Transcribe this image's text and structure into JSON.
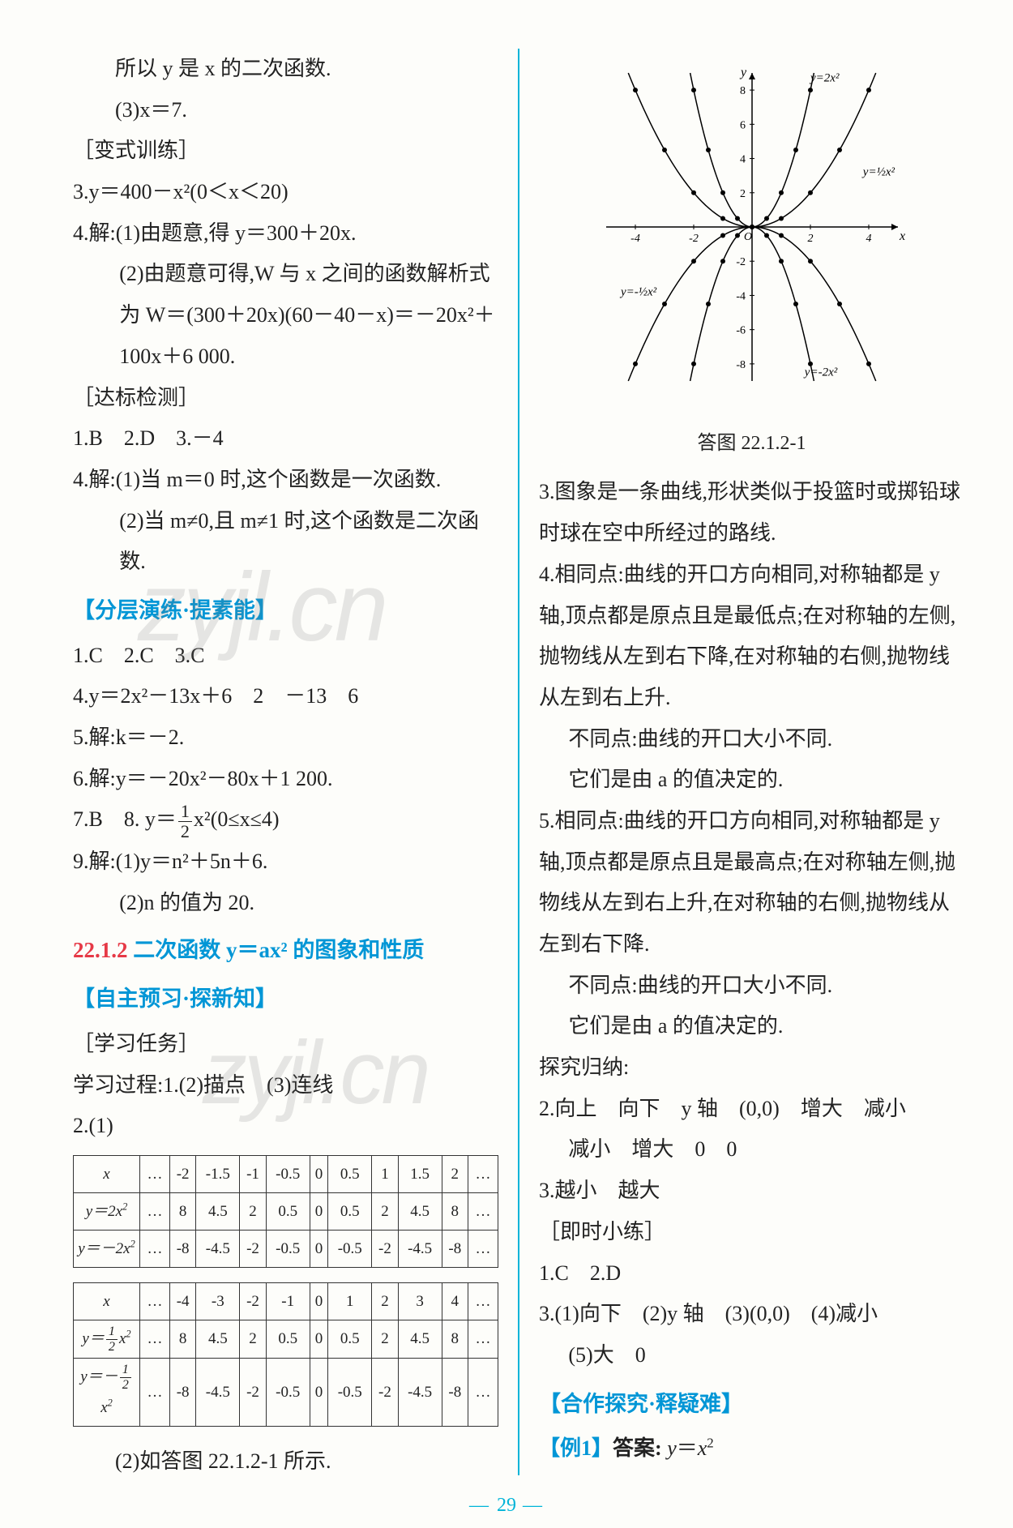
{
  "page_number": "29",
  "watermarks": [
    "zyjl.cn",
    "zyjl.cn"
  ],
  "colors": {
    "divider": "#00b4d8",
    "blue_heading": "#0096d6",
    "red_heading": "#e63946",
    "text": "#222222",
    "background": "#fdfdfa",
    "watermark": "rgba(120,120,120,0.18)"
  },
  "left": {
    "p1": "所以 y 是 x 的二次函数.",
    "p2": "(3)x＝7.",
    "h_var": "［变式训练］",
    "q3": "3.y＝400－x²(0＜x＜20)",
    "q4a": "4.解:(1)由题意,得 y＝300＋20x.",
    "q4b": "(2)由题意可得,W 与 x 之间的函数解析式为 W＝(300＋20x)(60－40－x)＝－20x²＋100x＋6 000.",
    "h_dabiao": "［达标检测］",
    "ans1": "1.B　2.D　3.－4",
    "q4_2a": "4.解:(1)当 m＝0 时,这个函数是一次函数.",
    "q4_2b": "(2)当 m≠0,且 m≠1 时,这个函数是二次函数.",
    "h_fenceng": "【分层演练·提素能】",
    "fc1": "1.C　2.C　3.C",
    "fc4": "4.y＝2x²－13x＋6　2　－13　6",
    "fc5": "5.解:k＝－2.",
    "fc6": "6.解:y＝－20x²－80x＋1 200.",
    "fc7a": "7.B　8.",
    "fc7b": "y＝",
    "fc7c": "x²(0≤x≤4)",
    "fc9a": "9.解:(1)y＝n²＋5n＋6.",
    "fc9b": "(2)n 的值为 20.",
    "sec_num": "22.1.2",
    "sec_txt": "二次函数 y＝ax² 的图象和性质",
    "h_zizhu": "【自主预习·探新知】",
    "h_xuexi": "［学习任务］",
    "xuexi1": "学习过程:1.(2)描点　(3)连线",
    "q2_1": "2.(1)",
    "q2_2_caption": "(2)如答图 22.1.2-1 所示."
  },
  "table1": {
    "headers": [
      "x",
      "…",
      "-2",
      "-1.5",
      "-1",
      "-0.5",
      "0",
      "0.5",
      "1",
      "1.5",
      "2",
      "…"
    ],
    "rows": [
      [
        "y＝2x²",
        "…",
        "8",
        "4.5",
        "2",
        "0.5",
        "0",
        "0.5",
        "2",
        "4.5",
        "8",
        "…"
      ],
      [
        "y＝－2x²",
        "…",
        "-8",
        "-4.5",
        "-2",
        "-0.5",
        "0",
        "-0.5",
        "-2",
        "-4.5",
        "-8",
        "…"
      ]
    ]
  },
  "table2": {
    "headers": [
      "x",
      "…",
      "-4",
      "-3",
      "-2",
      "-1",
      "0",
      "1",
      "2",
      "3",
      "4",
      "…"
    ],
    "rows": [
      [
        "y＝½x²",
        "…",
        "8",
        "4.5",
        "2",
        "0.5",
        "0",
        "0.5",
        "2",
        "4.5",
        "8",
        "…"
      ],
      [
        "y＝－½x²",
        "…",
        "-8",
        "-4.5",
        "-2",
        "-0.5",
        "0",
        "-0.5",
        "-2",
        "-4.5",
        "-8",
        "…"
      ]
    ]
  },
  "chart": {
    "caption": "答图 22.1.2-1",
    "x_range": [
      -5,
      5
    ],
    "y_range": [
      -9,
      9
    ],
    "x_ticks": [
      -4,
      -2,
      2,
      4
    ],
    "y_ticks": [
      -8,
      -6,
      -4,
      -2,
      2,
      4,
      6,
      8
    ],
    "curves": [
      {
        "label": "y=2x²",
        "a": 2.0,
        "label_pos": [
          2.0,
          8.5
        ]
      },
      {
        "label": "y=½x²",
        "a": 0.5,
        "label_pos": [
          3.8,
          3.0
        ]
      },
      {
        "label": "y=-½x²",
        "a": -0.5,
        "label_pos": [
          -4.5,
          -4.0
        ]
      },
      {
        "label": "y=-2x²",
        "a": -2.0,
        "label_pos": [
          1.8,
          -8.7
        ]
      }
    ],
    "axis_color": "#000000",
    "curve_color": "#000000",
    "point_color": "#000000",
    "background": "#fdfdfa"
  },
  "right": {
    "q3": "3.图象是一条曲线,形状类似于投篮时或掷铅球时球在空中所经过的路线.",
    "q4a": "4.相同点:曲线的开口方向相同,对称轴都是 y 轴,顶点都是原点且是最低点;在对称轴的左侧,抛物线从左到右下降,在对称轴的右侧,抛物线从左到右上升.",
    "q4b": "不同点:曲线的开口大小不同.",
    "q4c": "它们是由 a 的值决定的.",
    "q5a": "5.相同点:曲线的开口方向相同,对称轴都是 y 轴,顶点都是原点且是最高点;在对称轴左侧,抛物线从左到右上升,在对称轴的右侧,抛物线从左到右下降.",
    "q5b": "不同点:曲线的开口大小不同.",
    "q5c": "它们是由 a 的值决定的.",
    "h_tanjiu": "探究归纳:",
    "tj2a": "2.向上　向下　y 轴　(0,0)　增大　减小",
    "tj2b": "减小　增大　0　0",
    "tj3": "3.越小　越大",
    "h_jishi": "［即时小练］",
    "js1": "1.C　2.D",
    "js3": "3.(1)向下　(2)y 轴　(3)(0,0)　(4)减小",
    "js3b": "(5)大　0",
    "h_hezuo": "【合作探究·释疑难】",
    "ex1": "【例1】答案: y＝x²"
  }
}
